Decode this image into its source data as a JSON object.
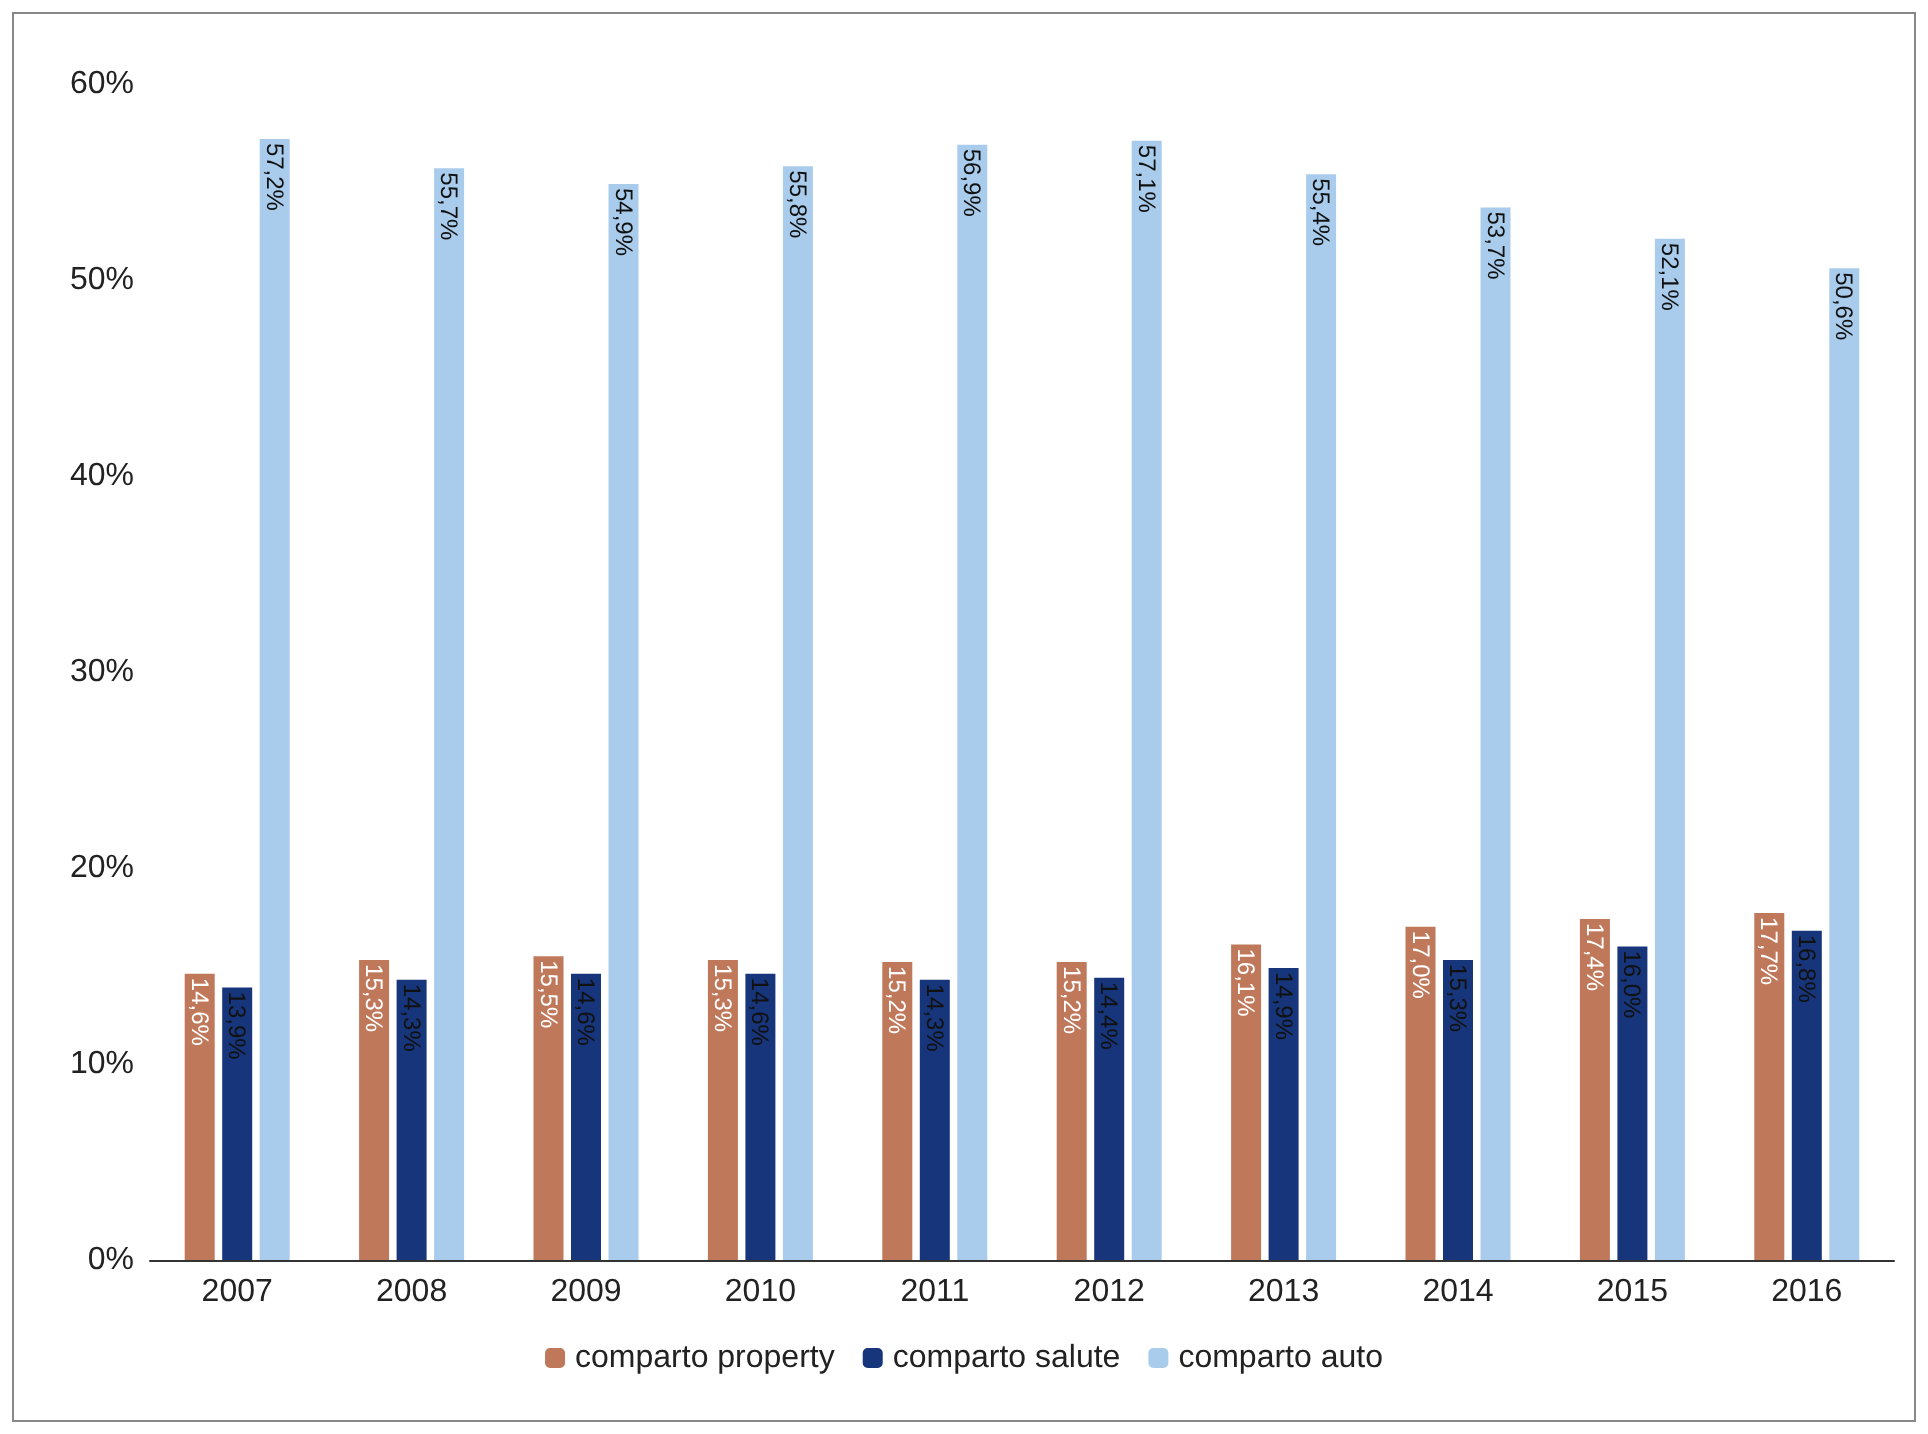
{
  "chart_data": {
    "type": "bar",
    "categories": [
      "2007",
      "2008",
      "2009",
      "2010",
      "2011",
      "2012",
      "2013",
      "2014",
      "2015",
      "2016"
    ],
    "series": [
      {
        "name": "comparto property",
        "color": "#c0785a",
        "values": [
          14.6,
          15.3,
          15.5,
          15.3,
          15.2,
          15.2,
          16.1,
          17.0,
          17.4,
          17.7
        ],
        "value_labels": [
          "14,6%",
          "15,3%",
          "15,5%",
          "15,3%",
          "15,2%",
          "15,2%",
          "16,1%",
          "17,0%",
          "17,4%",
          "17,7%"
        ]
      },
      {
        "name": "comparto salute",
        "color": "#17357a",
        "values": [
          13.9,
          14.3,
          14.6,
          14.6,
          14.3,
          14.4,
          14.9,
          15.3,
          16.0,
          16.8
        ],
        "value_labels": [
          "13,9%",
          "14,3%",
          "14,6%",
          "14,6%",
          "14,3%",
          "14,4%",
          "14,9%",
          "15,3%",
          "16,0%",
          "16,8%"
        ]
      },
      {
        "name": "comparto auto",
        "color": "#a9ccec",
        "values": [
          57.2,
          55.7,
          54.9,
          55.8,
          56.9,
          57.1,
          55.4,
          53.7,
          52.1,
          50.6
        ],
        "value_labels": [
          "57,2%",
          "55,7%",
          "54,9%",
          "55,8%",
          "56,9%",
          "57,1%",
          "55,4%",
          "53,7%",
          "52,1%",
          "50,6%"
        ]
      }
    ],
    "ylim": [
      0,
      60
    ],
    "yticks": [
      {
        "value": 0,
        "label": "0%"
      },
      {
        "value": 10,
        "label": "10%"
      },
      {
        "value": 20,
        "label": "20%"
      },
      {
        "value": 30,
        "label": "30%"
      },
      {
        "value": 40,
        "label": "40%"
      },
      {
        "value": 50,
        "label": "50%"
      },
      {
        "value": 60,
        "label": "60%"
      }
    ],
    "grid": false,
    "legend": "bottom"
  }
}
